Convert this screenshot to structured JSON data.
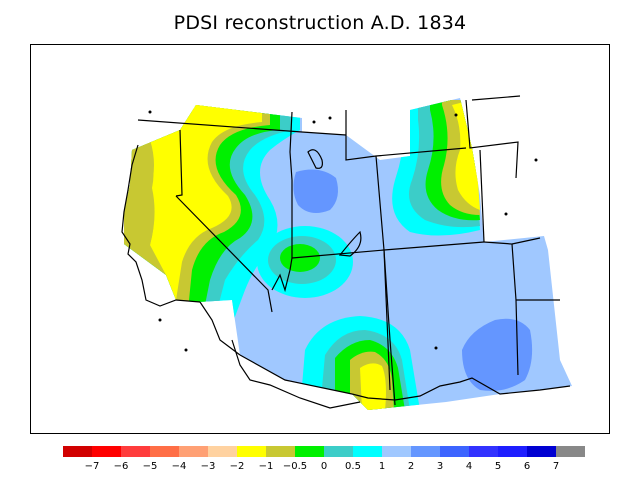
{
  "title": "PDSI reconstruction A.D. 1834",
  "legend": {
    "colors": [
      "#d10000",
      "#ff0000",
      "#ff3c3c",
      "#ff6e46",
      "#ffa074",
      "#ffd2a0",
      "#ffff00",
      "#c8c832",
      "#00f000",
      "#3ccdc8",
      "#00ffff",
      "#a0c8ff",
      "#6496ff",
      "#3c64ff",
      "#3232ff",
      "#1e1eff",
      "#0000d2",
      "#888888"
    ],
    "labels": [
      "−7",
      "−6",
      "−5",
      "−4",
      "−3",
      "−2",
      "−1",
      "−0.5",
      "0",
      "0.5",
      "1",
      "2",
      "3",
      "4",
      "5",
      "6",
      "7"
    ]
  },
  "palette": {
    "very_dry": "#ffff00",
    "dry": "#c8c832",
    "near_normal": "#00f000",
    "slightly_wet": "#3ccdc8",
    "wet": "#00ffff",
    "moist": "#a0c8ff",
    "very_moist": "#6496ff"
  }
}
